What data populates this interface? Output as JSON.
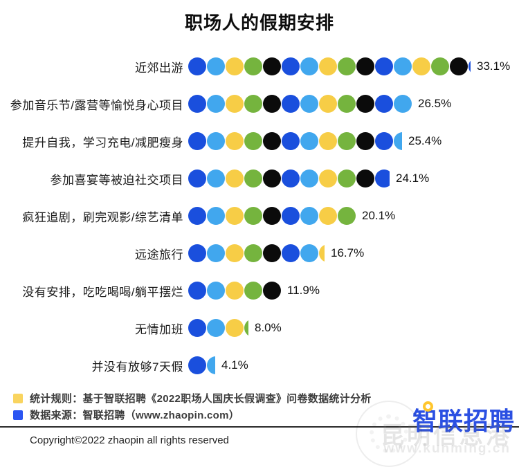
{
  "title": "职场人的假期安排",
  "chart_data": {
    "type": "bar",
    "title": "职场人的假期安排",
    "orientation": "horizontal",
    "encoding": "dot-row (each dot = 2.2%)",
    "unit_percent_per_dot": 2.2,
    "dot_colors": [
      "#1a4fdd",
      "#41a7ee",
      "#f7cd46",
      "#75b43e",
      "#0b0b0b"
    ],
    "categories": [
      "近郊出游",
      "参加音乐节/露营等愉悦身心项目",
      "提升自我，学习充电/减肥瘦身",
      "参加喜宴等被迫社交项目",
      "疯狂追剧，刷完观影/综艺清单",
      "远途旅行",
      "没有安排，吃吃喝喝/躺平摆烂",
      "无情加班",
      "并没有放够7天假"
    ],
    "values": [
      33.1,
      26.5,
      25.4,
      24.1,
      20.1,
      16.7,
      11.9,
      8.0,
      4.1
    ],
    "value_labels": [
      "33.1%",
      "26.5%",
      "25.4%",
      "24.1%",
      "20.1%",
      "16.7%",
      "11.9%",
      "8.0%",
      "4.1%"
    ],
    "dots": [
      {
        "full": 15,
        "fraction": 0.12
      },
      {
        "full": 12,
        "fraction": 0
      },
      {
        "full": 11,
        "fraction": 0.48
      },
      {
        "full": 10,
        "fraction": 0.8
      },
      {
        "full": 9,
        "fraction": 0
      },
      {
        "full": 7,
        "fraction": 0.32
      },
      {
        "full": 5,
        "fraction": 0
      },
      {
        "full": 3,
        "fraction": 0.22
      },
      {
        "full": 1,
        "fraction": 0.45
      }
    ],
    "xlim": [
      0,
      35
    ],
    "grid": false,
    "legend_position": "none"
  },
  "legend": {
    "items": [
      {
        "swatch_color": "#f9d45f",
        "label": "统计规则：基于智联招聘《2022职场人国庆长假调查》问卷数据统计分析"
      },
      {
        "swatch_color": "#2b55f2",
        "label": "数据来源：智联招聘（www.zhaopin.com）"
      }
    ]
  },
  "footer": {
    "copyright": "Copyright©2022 zhaopin all rights reserved"
  },
  "logo": {
    "text": "智联招聘",
    "color": "#2b50e2",
    "dot_color": "#ffc62e"
  },
  "watermark": {
    "line1": "昆明信息港",
    "line2": "www.kunming.cn"
  }
}
